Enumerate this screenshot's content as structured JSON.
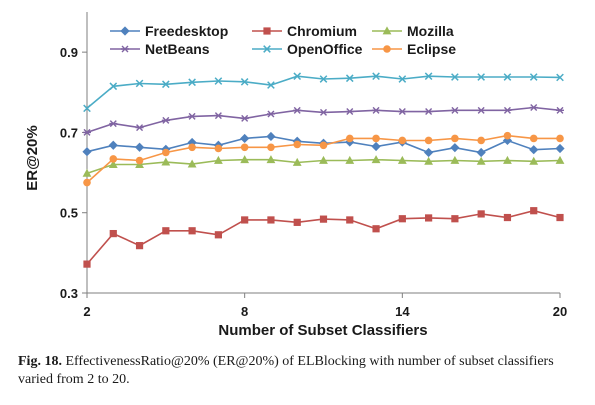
{
  "chart_data": {
    "type": "line",
    "title": "",
    "xlabel": "Number of Subset Classifiers",
    "ylabel": "ER@20%",
    "x": [
      2,
      3,
      4,
      5,
      6,
      7,
      8,
      9,
      10,
      11,
      12,
      13,
      14,
      15,
      16,
      17,
      18,
      19,
      20
    ],
    "xticks": [
      2,
      8,
      14,
      20
    ],
    "yticks": [
      "0.3",
      "0.5",
      "0.7",
      "0.9"
    ],
    "xlim": [
      2,
      20
    ],
    "ylim": [
      0.3,
      1.0
    ],
    "grid": false,
    "legend_position": "top",
    "series": [
      {
        "name": "Freedesktop",
        "color": "#4f81bd",
        "marker": "diamond",
        "values": [
          0.652,
          0.668,
          0.663,
          0.658,
          0.675,
          0.668,
          0.685,
          0.69,
          0.678,
          0.673,
          0.676,
          0.665,
          0.676,
          0.65,
          0.662,
          0.65,
          0.68,
          0.657,
          0.66
        ]
      },
      {
        "name": "Chromium",
        "color": "#c0504d",
        "marker": "square",
        "values": [
          0.372,
          0.448,
          0.418,
          0.455,
          0.455,
          0.445,
          0.482,
          0.482,
          0.476,
          0.484,
          0.482,
          0.46,
          0.485,
          0.487,
          0.485,
          0.497,
          0.488,
          0.505,
          0.488
        ]
      },
      {
        "name": "Mozilla",
        "color": "#9bbb59",
        "marker": "triangle",
        "values": [
          0.598,
          0.62,
          0.62,
          0.626,
          0.621,
          0.63,
          0.632,
          0.632,
          0.625,
          0.63,
          0.63,
          0.632,
          0.63,
          0.628,
          0.63,
          0.628,
          0.63,
          0.628,
          0.63
        ]
      },
      {
        "name": "NetBeans",
        "color": "#8064a2",
        "marker": "star",
        "values": [
          0.7,
          0.722,
          0.712,
          0.73,
          0.74,
          0.742,
          0.735,
          0.746,
          0.755,
          0.75,
          0.752,
          0.755,
          0.752,
          0.752,
          0.755,
          0.755,
          0.755,
          0.762,
          0.755
        ]
      },
      {
        "name": "OpenOffice",
        "color": "#4bacc6",
        "marker": "x",
        "values": [
          0.76,
          0.815,
          0.822,
          0.82,
          0.825,
          0.828,
          0.826,
          0.818,
          0.84,
          0.833,
          0.835,
          0.84,
          0.833,
          0.84,
          0.838,
          0.838,
          0.838,
          0.838,
          0.837
        ]
      },
      {
        "name": "Eclipse",
        "color": "#f79646",
        "marker": "circle",
        "values": [
          0.575,
          0.634,
          0.63,
          0.65,
          0.663,
          0.66,
          0.663,
          0.663,
          0.67,
          0.668,
          0.685,
          0.685,
          0.68,
          0.68,
          0.685,
          0.68,
          0.692,
          0.685,
          0.685
        ]
      }
    ]
  },
  "caption": {
    "label": "Fig. 18.",
    "text": "EffectivenessRatio@20% (ER@20%) of ELBlocking with number of subset classifiers varied from 2 to 20."
  }
}
